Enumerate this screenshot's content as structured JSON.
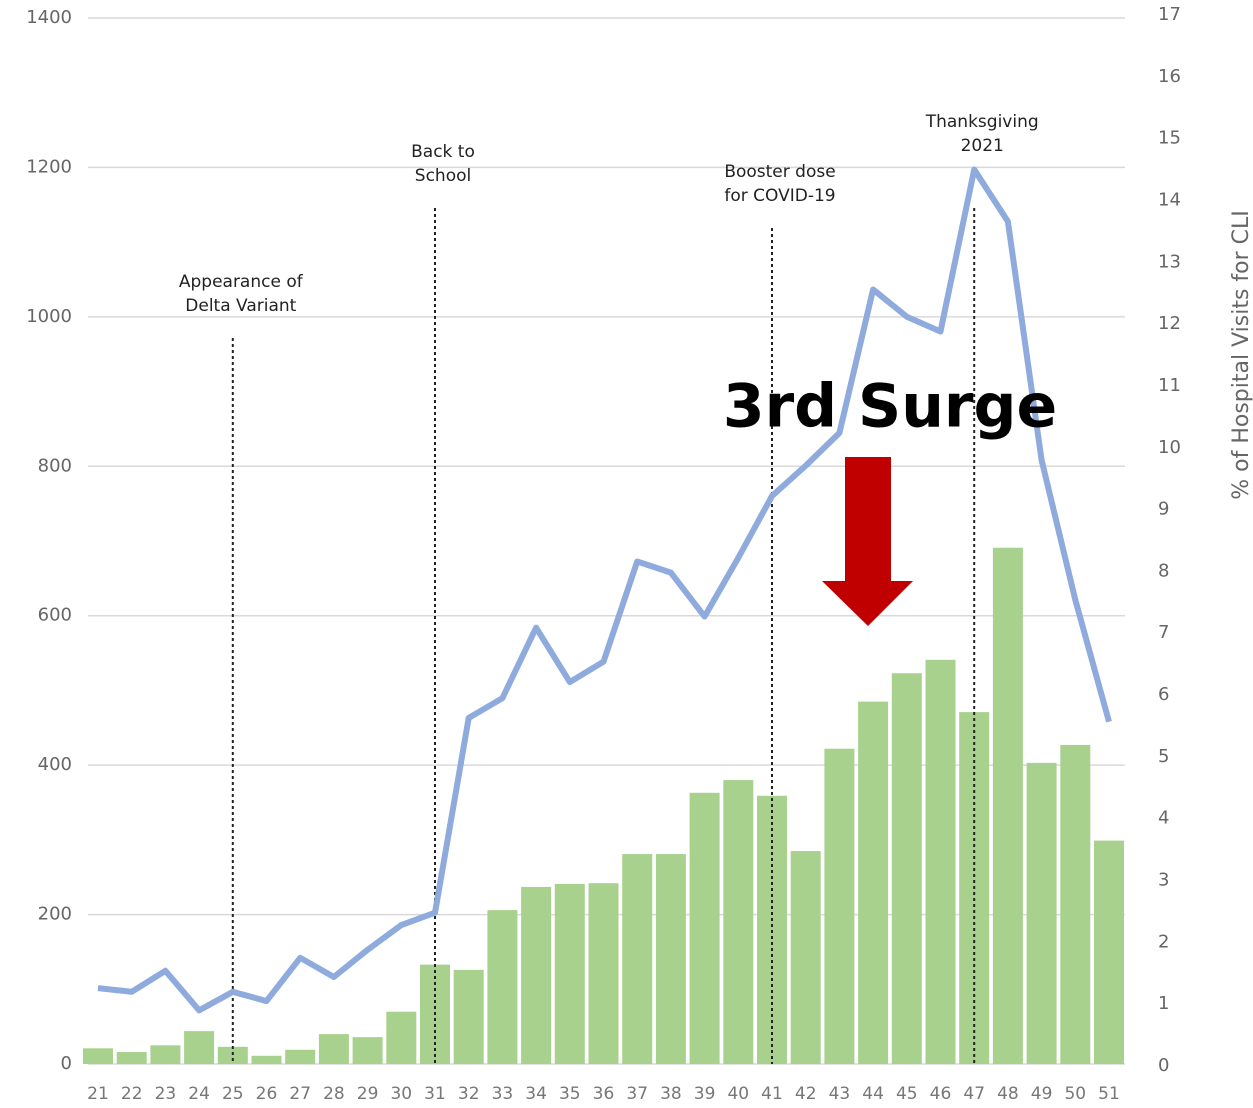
{
  "chart_data": {
    "type": "bar_line",
    "categories": [
      "21",
      "22",
      "23",
      "24",
      "25",
      "26",
      "27",
      "28",
      "29",
      "30",
      "31",
      "32",
      "33",
      "34",
      "35",
      "36",
      "37",
      "38",
      "39",
      "40",
      "41",
      "42",
      "43",
      "44",
      "45",
      "46",
      "47",
      "48",
      "49",
      "50",
      "51"
    ],
    "series": [
      {
        "type": "bar",
        "color": "#a9d18e",
        "values": [
          21,
          16,
          25,
          44,
          23,
          11,
          19,
          40,
          36,
          70,
          133,
          126,
          206,
          237,
          241,
          242,
          281,
          281,
          363,
          380,
          359,
          285,
          422,
          485,
          523,
          541,
          471,
          691,
          403,
          427,
          299
        ]
      },
      {
        "type": "line",
        "axis": "y2",
        "color": "#8faadc",
        "values": [
          1.26,
          1.2,
          1.54,
          0.9,
          1.2,
          1.05,
          1.75,
          1.44,
          1.88,
          2.28,
          2.48,
          5.63,
          5.95,
          7.09,
          6.21,
          6.54,
          8.16,
          7.98,
          7.27,
          8.22,
          9.22,
          9.71,
          10.24,
          12.56,
          12.12,
          11.88,
          14.5,
          13.66,
          9.8,
          7.54,
          5.57
        ]
      }
    ],
    "ylim": [
      0,
      1400
    ],
    "yticks": [
      0,
      200,
      400,
      600,
      800,
      1000,
      1200,
      1400
    ],
    "y2lim": [
      0,
      17
    ],
    "y2ticks": [
      0,
      1,
      2,
      3,
      4,
      5,
      6,
      7,
      8,
      9,
      10,
      11,
      12,
      13,
      14,
      15,
      16,
      17
    ],
    "y2label": "% of Hospital Visits for CLI",
    "grid": true,
    "annotations": [
      {
        "x": "25",
        "lines": [
          "Appearance of",
          "Delta Variant"
        ]
      },
      {
        "x": "31",
        "lines": [
          "Back to",
          "School"
        ]
      },
      {
        "x": "41",
        "lines": [
          "Booster dose",
          "for COVID-19"
        ]
      },
      {
        "x": "47",
        "lines": [
          "Thanksgiving",
          "2021"
        ]
      }
    ],
    "highlight": "3rd Surge"
  }
}
